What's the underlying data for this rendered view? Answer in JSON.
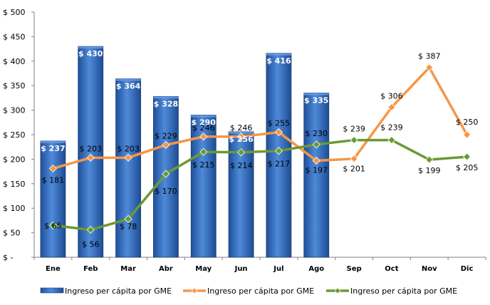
{
  "chart_data": {
    "type": "bar",
    "categories": [
      "Ene",
      "Feb",
      "Mar",
      "Abr",
      "May",
      "Jun",
      "Jul",
      "Ago",
      "Sep",
      "Oct",
      "Nov",
      "Dic"
    ],
    "ylim": [
      0,
      500
    ],
    "yticks": [
      0,
      50,
      100,
      150,
      200,
      250,
      300,
      350,
      400,
      450,
      500
    ],
    "ytick_labels": [
      "$ -",
      "$ 50",
      "$ 100",
      "$ 150",
      "$ 200",
      "$ 250",
      "$ 300",
      "$ 350",
      "$ 400",
      "$ 450",
      "$ 500"
    ],
    "grid": false,
    "legend_position": "bottom",
    "series": [
      {
        "name": "Ingreso per cápita por GME",
        "kind": "bar",
        "color": "#2e6dc4",
        "values": [
          237,
          430,
          364,
          328,
          290,
          256,
          416,
          335,
          null,
          null,
          null,
          null
        ],
        "labels": [
          "$ 237",
          "$ 430",
          "$ 364",
          "$ 328",
          "$ 290",
          "$ 256",
          "$ 416",
          "$ 335",
          "",
          "",
          "",
          ""
        ]
      },
      {
        "name": "Ingreso per cápita por GME",
        "kind": "line",
        "color": "#f79646",
        "values": [
          181,
          203,
          203,
          229,
          246,
          246,
          255,
          197,
          201,
          306,
          387,
          250
        ],
        "labels": [
          "$ 181",
          "$ 203",
          "$ 203",
          "$ 229",
          "$ 246",
          "$ 246",
          "$ 255",
          "$ 197",
          "$ 201",
          "$ 306",
          "$ 387",
          "$ 250"
        ]
      },
      {
        "name": "Ingreso per cápita por GME",
        "kind": "line",
        "color": "#6a9a34",
        "values": [
          65,
          56,
          78,
          170,
          215,
          214,
          217,
          230,
          239,
          239,
          199,
          205
        ],
        "labels": [
          "$ 65",
          "$ 56",
          "$ 78",
          "$ 170",
          "$ 215",
          "$ 214",
          "$ 217",
          "$ 230",
          "$ 239",
          "$ 239",
          "$ 199",
          "$ 205"
        ]
      }
    ]
  }
}
